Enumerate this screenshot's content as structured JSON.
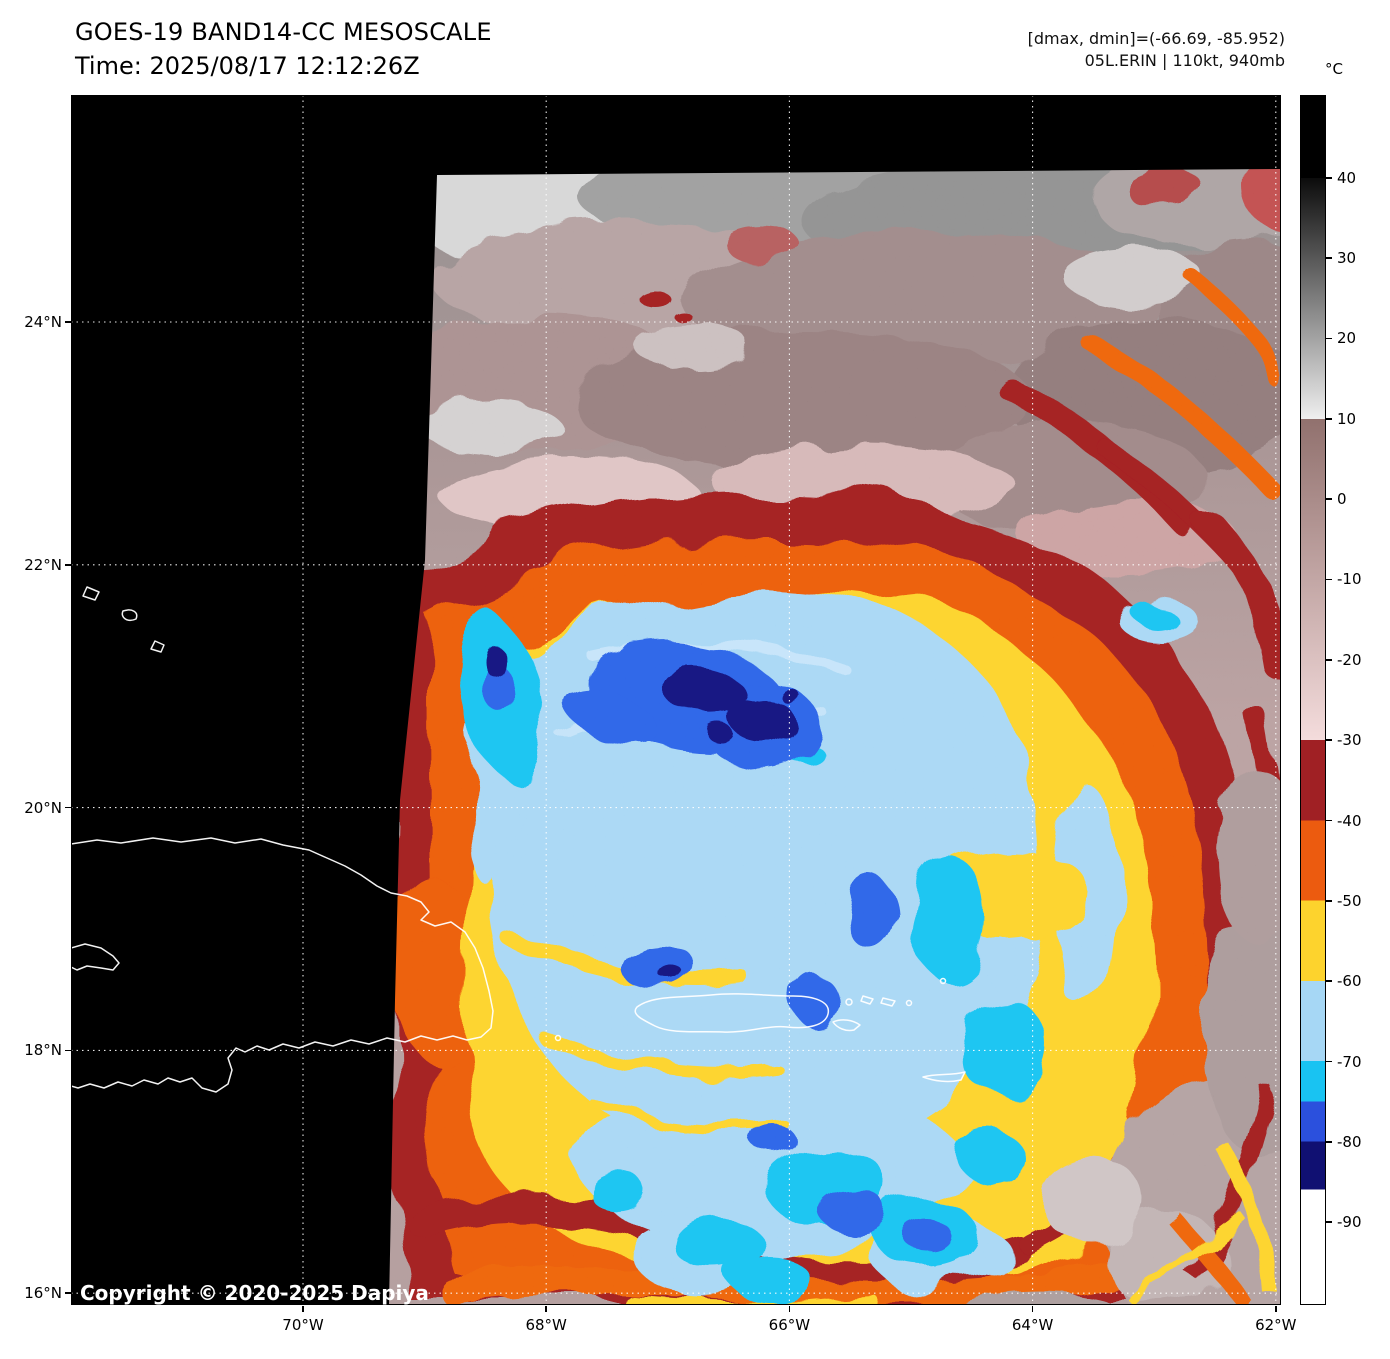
{
  "header": {
    "title": "GOES-19 BAND14-CC MESOSCALE",
    "time": "Time: 2025/08/17 12:12:26Z",
    "info_line1": "[dmax, dmin]=(-66.69, -85.952)",
    "info_line2": "05L.ERIN | 110kt, 940mb"
  },
  "copyright": "Copyright © 2020-2025 Dapiya",
  "colorbar": {
    "unit_label": "°C",
    "range": [
      50.3,
      -100.3
    ],
    "ticks": [
      {
        "value": 40,
        "label": "40"
      },
      {
        "value": 30,
        "label": "30"
      },
      {
        "value": 20,
        "label": "20"
      },
      {
        "value": 10,
        "label": "10"
      },
      {
        "value": 0,
        "label": "0"
      },
      {
        "value": -10,
        "label": "-10"
      },
      {
        "value": -20,
        "label": "-20"
      },
      {
        "value": -30,
        "label": "-30"
      },
      {
        "value": -40,
        "label": "-40"
      },
      {
        "value": -50,
        "label": "-50"
      },
      {
        "value": -60,
        "label": "-60"
      },
      {
        "value": -70,
        "label": "-70"
      },
      {
        "value": -80,
        "label": "-80"
      },
      {
        "value": -90,
        "label": "-90"
      }
    ],
    "segments": [
      {
        "v0": 50.3,
        "v1": 40,
        "c0": "#000000",
        "c1": "#000000"
      },
      {
        "v0": 40,
        "v1": 10,
        "c0": "#0c0c0c",
        "c1": "#efefef"
      },
      {
        "v0": 10,
        "v1": -30,
        "c0": "#91716e",
        "c1": "#f4dcdc"
      },
      {
        "v0": -30,
        "v1": -40,
        "c0": "#a02024",
        "c1": "#a02024"
      },
      {
        "v0": -40,
        "v1": -50,
        "c0": "#ec5b0f",
        "c1": "#ec5b0f"
      },
      {
        "v0": -50,
        "v1": -60,
        "c0": "#fdd32d",
        "c1": "#fdd32d"
      },
      {
        "v0": -60,
        "v1": -70,
        "c0": "#a6d7f5",
        "c1": "#a6d7f5"
      },
      {
        "v0": -70,
        "v1": -75,
        "c0": "#19c3f2",
        "c1": "#19c3f2"
      },
      {
        "v0": -75,
        "v1": -80,
        "c0": "#2b50dd",
        "c1": "#2b50dd"
      },
      {
        "v0": -80,
        "v1": -86,
        "c0": "#101072",
        "c1": "#101072"
      },
      {
        "v0": -86,
        "v1": -100.3,
        "c0": "#ffffff",
        "c1": "#ffffff"
      }
    ]
  },
  "axes": {
    "lat_ticks": [
      {
        "value": 24,
        "label": "24°N"
      },
      {
        "value": 22,
        "label": "22°N"
      },
      {
        "value": 20,
        "label": "20°N"
      },
      {
        "value": 18,
        "label": "18°N"
      },
      {
        "value": 16,
        "label": "16°N"
      }
    ],
    "lon_ticks": [
      {
        "value": 70,
        "label": "70°W"
      },
      {
        "value": 68,
        "label": "68°W"
      },
      {
        "value": 66,
        "label": "66°W"
      },
      {
        "value": 64,
        "label": "64°W"
      },
      {
        "value": 62,
        "label": "62°W"
      }
    ]
  }
}
